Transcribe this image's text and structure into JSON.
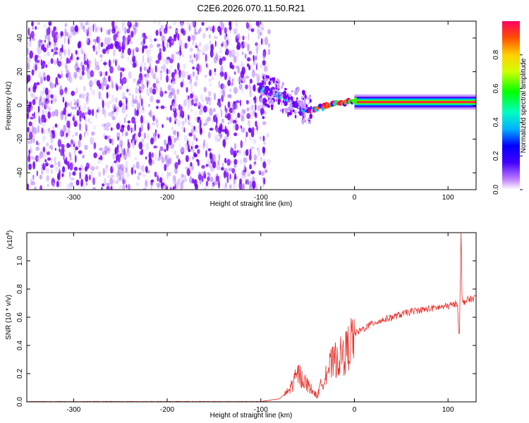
{
  "title": "C2E6.2026.070.11.50.R21",
  "colors": {
    "snr_line": "#e8302a",
    "axis": "#000000"
  },
  "chart_data": [
    {
      "type": "heatmap",
      "name": "spectrogram",
      "xlabel": "Height of straight line (km)",
      "ylabel": "Frequency (Hz)",
      "xlim": [
        -350,
        130
      ],
      "ylim": [
        -50,
        50
      ],
      "x_ticks": [
        -300,
        -200,
        -100,
        0,
        100
      ],
      "x_tick_labels": [
        "-300",
        "-200",
        "-100",
        "0",
        "100"
      ],
      "y_ticks": [
        -40,
        -20,
        0,
        20,
        40
      ],
      "y_tick_labels": [
        "-40",
        "-20",
        "0",
        "20",
        "40"
      ],
      "noise_region_x": [
        -350,
        -97
      ],
      "signal_trace": {
        "x": [
          -100,
          -90,
          -80,
          -70,
          -60,
          -50,
          -40,
          -30,
          -20,
          -10,
          0,
          20,
          50,
          80,
          100,
          130
        ],
        "freq": [
          10,
          8,
          6,
          3,
          1,
          -3,
          -2,
          0,
          1,
          2,
          2,
          2,
          2,
          2,
          2,
          2
        ]
      },
      "colorbar": {
        "label": "Normalized spectral amplitude",
        "range": [
          0,
          1
        ],
        "ticks": [
          0.0,
          0.2,
          0.4,
          0.6,
          0.8
        ],
        "tick_labels": [
          "0.0",
          "0.2",
          "0.4",
          "0.6",
          "0.8"
        ]
      }
    },
    {
      "type": "line",
      "name": "snr",
      "xlabel": "Height of straight line (km)",
      "ylabel": "SNR (10 * v/v)",
      "scale_label": "(x10",
      "scale_exponent": "4",
      "xlim": [
        -350,
        130
      ],
      "ylim": [
        0,
        1.2
      ],
      "x_ticks": [
        -300,
        -200,
        -100,
        0,
        100
      ],
      "x_tick_labels": [
        "-300",
        "-200",
        "-100",
        "0",
        "100"
      ],
      "y_ticks": [
        0,
        0.2,
        0.4,
        0.6,
        0.8,
        1.0
      ],
      "y_tick_labels": [
        "0.0",
        "0.2",
        "0.4",
        "0.6",
        "0.8",
        "1.0"
      ],
      "series": [
        {
          "name": "SNR",
          "x": [
            -350,
            -100,
            -80,
            -70,
            -60,
            -50,
            -40,
            -30,
            -20,
            -10,
            0,
            10,
            20,
            40,
            60,
            80,
            100,
            110,
            112,
            114,
            115,
            120,
            130
          ],
          "y": [
            0.0,
            0.0,
            0.02,
            0.08,
            0.2,
            0.12,
            0.04,
            0.22,
            0.3,
            0.34,
            0.48,
            0.52,
            0.56,
            0.6,
            0.64,
            0.66,
            0.68,
            0.7,
            0.45,
            1.2,
            0.7,
            0.72,
            0.74
          ]
        }
      ]
    }
  ]
}
